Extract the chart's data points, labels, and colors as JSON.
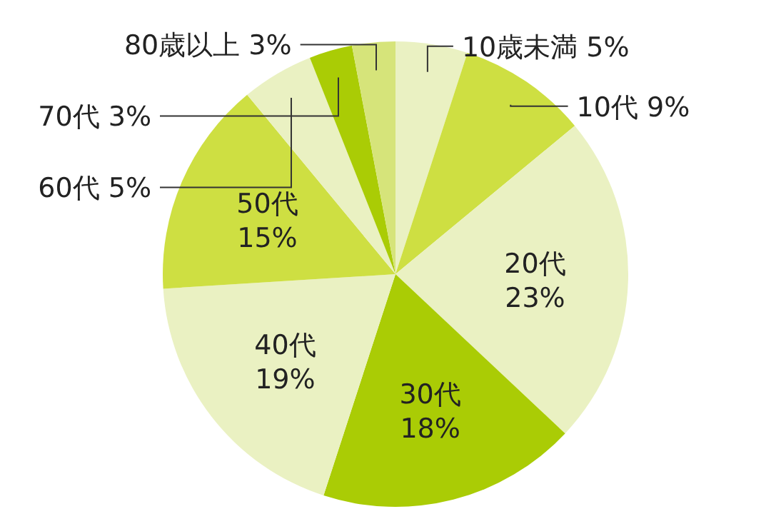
{
  "chart_data": {
    "type": "pie",
    "categories": [
      "10歳未満",
      "10代",
      "20代",
      "30代",
      "40代",
      "50代",
      "60代",
      "70代",
      "80歳以上"
    ],
    "values": [
      5,
      9,
      23,
      18,
      19,
      15,
      5,
      3,
      3
    ],
    "value_labels": [
      "5%",
      "9%",
      "23%",
      "18%",
      "19%",
      "15%",
      "5%",
      "3%",
      "3%"
    ],
    "colors": [
      "#eaf1c2",
      "#cedf42",
      "#eaf1c2",
      "#aacc05",
      "#eaf1c2",
      "#cedf42",
      "#eaf1c2",
      "#aacc05",
      "#d6e47a"
    ]
  }
}
